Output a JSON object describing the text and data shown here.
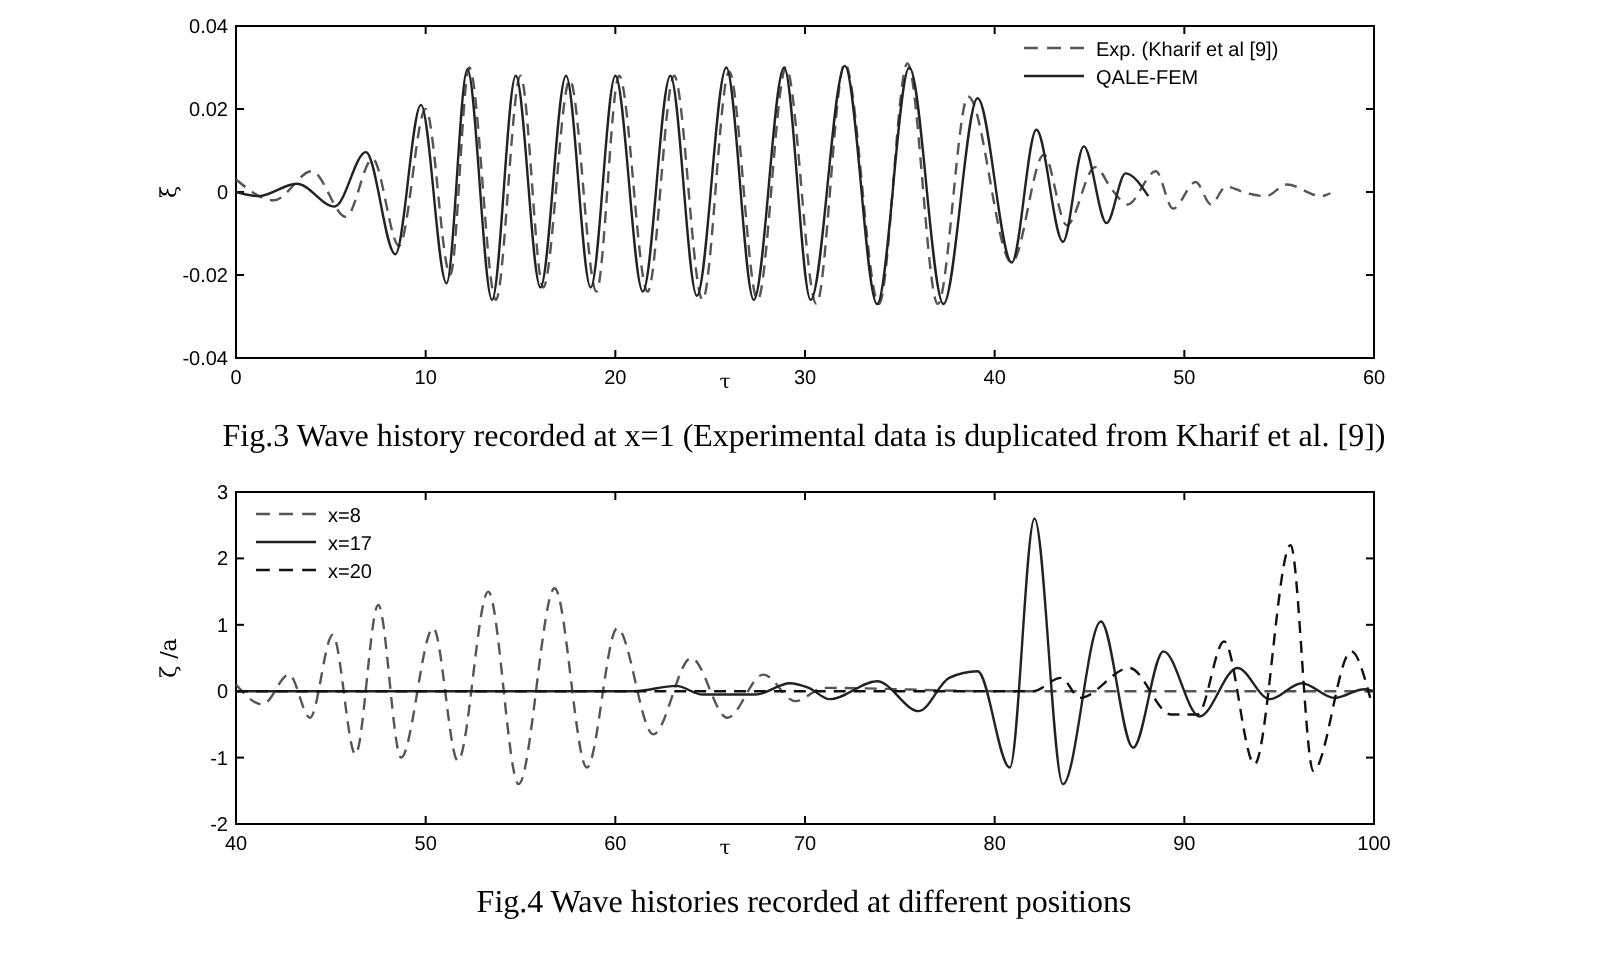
{
  "chart_data": [
    {
      "type": "line",
      "title": "Fig.3 Wave history recorded at x=1 (Experimental data is duplicated from Kharif et al. [9])",
      "xlabel": "τ",
      "ylabel": "ξ",
      "xlim": [
        0,
        60
      ],
      "ylim": [
        -0.04,
        0.04
      ],
      "xticks": [
        0,
        10,
        20,
        30,
        40,
        50,
        60
      ],
      "yticks": [
        -0.04,
        -0.02,
        0,
        0.02,
        0.04
      ],
      "legend": "top right",
      "grid": false,
      "series": [
        {
          "name": "Exp. (Kharif et al [9])",
          "color": "#555555",
          "line_style": "dashed",
          "x": [
            0,
            2,
            4,
            5.8,
            7.2,
            8.6,
            10,
            11.3,
            12.3,
            13.7,
            15,
            16.2,
            17.6,
            19,
            20.2,
            21.7,
            23.1,
            24.6,
            26,
            27.5,
            29,
            30.6,
            32.1,
            33.9,
            35.4,
            37,
            38.6,
            40.9,
            42.6,
            43.8,
            45.3,
            46.2,
            47,
            48.5,
            49.4,
            50.6,
            51.4,
            52.2,
            53.3,
            54.3,
            55.4,
            57.2,
            57.7
          ],
          "values": [
            0.003,
            -0.002,
            0.005,
            -0.006,
            0.008,
            -0.013,
            0.02,
            -0.02,
            0.03,
            -0.026,
            0.028,
            -0.023,
            0.027,
            -0.024,
            0.028,
            -0.024,
            0.028,
            -0.026,
            0.029,
            -0.026,
            0.03,
            -0.027,
            0.031,
            -0.027,
            0.031,
            -0.027,
            0.023,
            -0.017,
            0.009,
            -0.008,
            0.006,
            0.0005,
            -0.003,
            0.005,
            -0.004,
            0.0024,
            -0.003,
            0.0013,
            -0.0003,
            -0.001,
            0.0018,
            -0.001,
            -0.0003
          ]
        },
        {
          "name": "QALE-FEM",
          "color": "#222222",
          "line_style": "solid",
          "x": [
            0,
            1.2,
            3.2,
            5.2,
            6.85,
            8.4,
            9.75,
            11.1,
            12.2,
            13.5,
            14.75,
            16.05,
            17.4,
            18.7,
            20,
            21.45,
            22.9,
            24.3,
            25.85,
            27.3,
            28.9,
            30.3,
            32.1,
            33.8,
            35.5,
            37.3,
            39.1,
            40.9,
            42.2,
            43.6,
            44.7,
            45.9,
            46.9,
            48.1
          ],
          "values": [
            0,
            -0.001,
            0.002,
            -0.0035,
            0.0096,
            -0.015,
            0.021,
            -0.022,
            0.0296,
            -0.026,
            0.028,
            -0.023,
            0.028,
            -0.023,
            0.028,
            -0.024,
            0.028,
            -0.025,
            0.03,
            -0.026,
            0.03,
            -0.026,
            0.0304,
            -0.027,
            0.03,
            -0.027,
            0.0226,
            -0.017,
            0.015,
            -0.012,
            0.011,
            -0.0075,
            0.0045,
            -0.001
          ]
        }
      ]
    },
    {
      "type": "line",
      "title": "Fig.4 Wave histories recorded at different positions",
      "xlabel": "τ",
      "ylabel": "ζ /a",
      "xlim": [
        40,
        100
      ],
      "ylim": [
        -2,
        3
      ],
      "xticks": [
        40,
        50,
        60,
        70,
        80,
        90,
        100
      ],
      "yticks": [
        -2,
        -1,
        0,
        1,
        2,
        3
      ],
      "legend": "top left",
      "grid": false,
      "series": [
        {
          "name": "x=8",
          "color": "#555555",
          "line_style": "dashed",
          "x": [
            40,
            41.4,
            42.8,
            43.9,
            45.1,
            46.3,
            47.5,
            48.7,
            50.4,
            51.7,
            53.3,
            54.9,
            56.8,
            58.5,
            60.1,
            62,
            64,
            65.9,
            67.8,
            69.5,
            71,
            80,
            90,
            100
          ],
          "values": [
            0.1,
            -0.2,
            0.25,
            -0.4,
            0.85,
            -0.95,
            1.3,
            -1,
            0.95,
            -1.05,
            1.5,
            -1.4,
            1.55,
            -1.15,
            0.95,
            -0.65,
            0.5,
            -0.4,
            0.25,
            -0.15,
            0.05,
            0,
            0,
            0
          ]
        },
        {
          "name": "x=17",
          "color": "#222222",
          "line_style": "solid",
          "x": [
            40,
            61,
            63.2,
            64.6,
            67.4,
            69.2,
            70.2,
            71.3,
            73.8,
            76,
            77.6,
            79.1,
            80.8,
            82.1,
            83.6,
            85.6,
            87.3,
            88.9,
            90.8,
            92.8,
            94.5,
            96.2,
            97.9,
            99.5,
            100
          ],
          "values": [
            0,
            0,
            0.08,
            -0.05,
            -0.05,
            0.12,
            0.05,
            -0.12,
            0.15,
            -0.3,
            0.2,
            0.3,
            -1.15,
            2.6,
            -1.4,
            1.05,
            -0.85,
            0.6,
            -0.38,
            0.35,
            -0.12,
            0.12,
            -0.1,
            0.03,
            0
          ]
        },
        {
          "name": "x=20",
          "color": "#111111",
          "line_style": "dashed",
          "x": [
            40,
            60,
            80,
            82,
            83.5,
            84.5,
            87.1,
            89.3,
            90.7,
            92.1,
            93.7,
            95.6,
            96.8,
            98.8,
            99.8
          ],
          "values": [
            0,
            0,
            0,
            0,
            0.2,
            -0.1,
            0.35,
            -0.35,
            -0.35,
            0.75,
            -1.1,
            2.2,
            -1.2,
            0.6,
            -0.1
          ]
        }
      ]
    }
  ]
}
